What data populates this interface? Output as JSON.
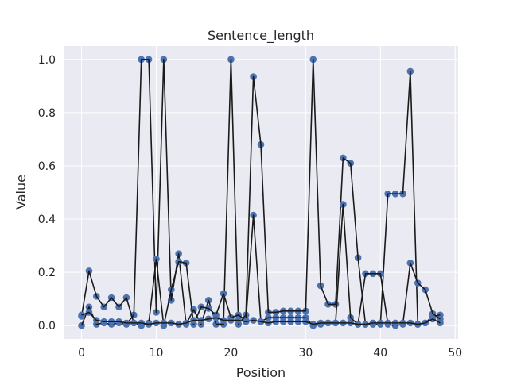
{
  "chart_data": {
    "type": "scatter",
    "title": "Sentence_length",
    "xlabel": "Position",
    "ylabel": "Value",
    "xlim": [
      -2.4,
      50.4
    ],
    "ylim": [
      -0.05,
      1.05
    ],
    "xticks": [
      0,
      10,
      20,
      30,
      40,
      50
    ],
    "xtick_labels": [
      "0",
      "10",
      "20",
      "30",
      "40",
      "50"
    ],
    "yticks": [
      0.0,
      0.2,
      0.4,
      0.6,
      0.8,
      1.0
    ],
    "ytick_labels": [
      "0.0",
      "0.2",
      "0.4",
      "0.6",
      "0.8",
      "1.0"
    ],
    "grid": true,
    "background": "#eaeaf2",
    "grid_color": "#ffffff",
    "marker_color": "#4c72b0",
    "line_color": "#1a1a1a",
    "series": [
      {
        "x": [
          0,
          1,
          2,
          3,
          4,
          5,
          6,
          7,
          8,
          9,
          10,
          11,
          12,
          13,
          14,
          15,
          16,
          17,
          18,
          19,
          20,
          21,
          22,
          23,
          24,
          25,
          26,
          27,
          28,
          29,
          30,
          31,
          32,
          33,
          34,
          35,
          36,
          37,
          38,
          39,
          40,
          41,
          42,
          43,
          44,
          45,
          46,
          47,
          48
        ],
        "y": [
          0.0,
          0.07,
          0.005,
          0.01,
          0.005,
          0.01,
          0.005,
          0.04,
          1.0,
          1.0,
          0.05,
          1.0,
          0.095,
          0.27,
          0.005,
          0.06,
          0.005,
          0.095,
          0.005,
          0.005,
          1.0,
          0.005,
          0.04,
          0.935,
          0.68,
          0.05,
          0.05,
          0.055,
          0.055,
          0.055,
          0.055,
          1.0,
          0.15,
          0.08,
          0.08,
          0.63,
          0.61,
          0.255,
          0.005,
          0.005,
          0.005,
          0.495,
          0.495,
          0.495,
          0.955,
          0.005,
          0.01,
          0.035,
          0.04
        ]
      },
      {
        "x": [
          0,
          1,
          2,
          3,
          4,
          5,
          6,
          7,
          8,
          9,
          10,
          11,
          12,
          13,
          14,
          15,
          16,
          17,
          18,
          19,
          20,
          21,
          22,
          23,
          24,
          25,
          26,
          27,
          28,
          29,
          30,
          31,
          32,
          33,
          34,
          35,
          36,
          37,
          38,
          39,
          40,
          41,
          42,
          43,
          44,
          45,
          46,
          47,
          48
        ],
        "y": [
          0.035,
          0.205,
          0.11,
          0.07,
          0.105,
          0.07,
          0.105,
          0.01,
          0.0,
          0.01,
          0.25,
          0.0,
          0.135,
          0.24,
          0.235,
          0.005,
          0.07,
          0.065,
          0.04,
          0.12,
          0.03,
          0.04,
          0.02,
          0.415,
          0.015,
          0.03,
          0.03,
          0.03,
          0.03,
          0.03,
          0.03,
          0.0,
          0.005,
          0.01,
          0.01,
          0.455,
          0.03,
          0.005,
          0.195,
          0.195,
          0.195,
          0.005,
          0.0,
          0.005,
          0.235,
          0.16,
          0.135,
          0.045,
          0.025
        ]
      },
      {
        "x": [
          0,
          1,
          2,
          3,
          4,
          5,
          6,
          7,
          8,
          9,
          10,
          11,
          12,
          13,
          14,
          15,
          16,
          17,
          18,
          19,
          20,
          21,
          22,
          23,
          24,
          25,
          26,
          27,
          28,
          29,
          30,
          31,
          32,
          33,
          34,
          35,
          36,
          37,
          38,
          39,
          40,
          41,
          42,
          43,
          44,
          45,
          46,
          47,
          48
        ],
        "y": [
          0.04,
          0.05,
          0.02,
          0.015,
          0.015,
          0.015,
          0.01,
          0.01,
          0.01,
          0.005,
          0.01,
          0.01,
          0.01,
          0.005,
          0.01,
          0.02,
          0.02,
          0.025,
          0.03,
          0.02,
          0.02,
          0.02,
          0.015,
          0.02,
          0.015,
          0.01,
          0.015,
          0.015,
          0.015,
          0.015,
          0.015,
          0.005,
          0.01,
          0.01,
          0.01,
          0.01,
          0.01,
          0.005,
          0.005,
          0.01,
          0.01,
          0.01,
          0.01,
          0.01,
          0.01,
          0.005,
          0.01,
          0.025,
          0.01
        ]
      }
    ]
  }
}
